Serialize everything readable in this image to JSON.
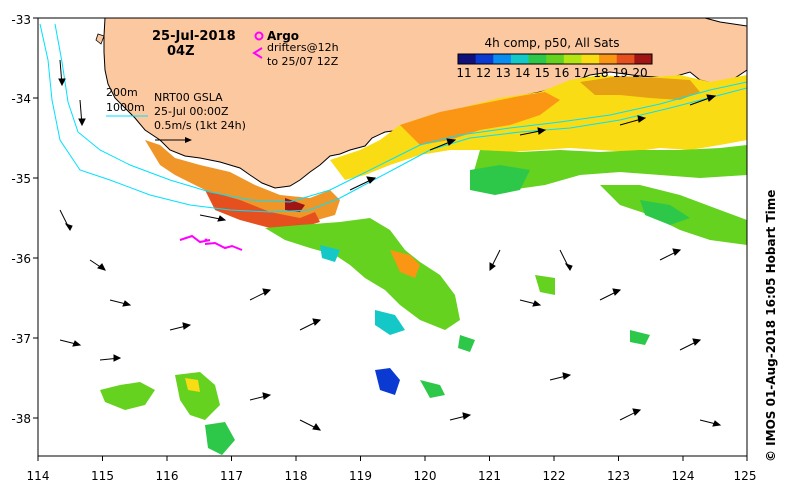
{
  "timestamp": {
    "date": "25-Jul-2018",
    "hour": "04Z"
  },
  "argo_legend": {
    "label": "Argo",
    "color": "#ff00ff"
  },
  "drifter_legend": {
    "line1": "drifters@12h",
    "line2": "to 25/07 12Z",
    "color": "#ff00ff"
  },
  "isobath_labels": [
    "200m",
    "1000m"
  ],
  "gsla_info": {
    "line1": "NRT00 GSLA",
    "line2": "25-Jul 00:00Z",
    "line3": "0.5m/s (1kt 24h)"
  },
  "colorbar": {
    "title": "4h comp, p50, All Sats",
    "ticks": [
      "11",
      "12",
      "13",
      "14",
      "15",
      "16",
      "17",
      "18",
      "19",
      "20"
    ],
    "colors": [
      "#10107a",
      "#0a3ad2",
      "#0a8cf0",
      "#14c8c8",
      "#2dc84a",
      "#64d21e",
      "#b4e614",
      "#fadc14",
      "#fa9614",
      "#e6501e",
      "#a01414"
    ]
  },
  "axes": {
    "x_ticks": [
      "114",
      "115",
      "116",
      "117",
      "118",
      "119",
      "120",
      "121",
      "122",
      "123",
      "124",
      "125"
    ],
    "y_ticks": [
      "-33",
      "-34",
      "-35",
      "-36",
      "-37",
      "-38"
    ]
  },
  "credit": "© IMOS 01-Aug-2018 16:05 Hobart Time",
  "colors": {
    "land": "#fcc8a0",
    "isobath": "#00e0ff",
    "frame": "#000000"
  }
}
